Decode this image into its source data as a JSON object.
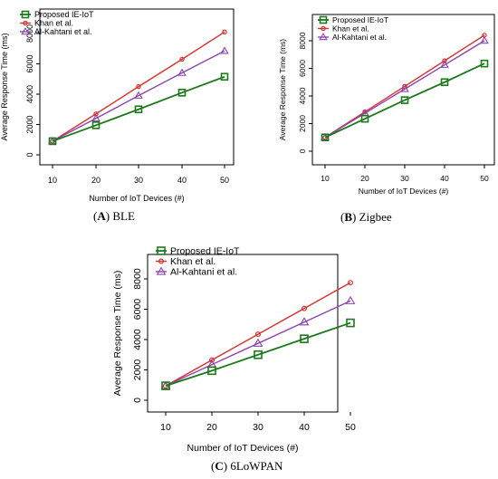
{
  "chart_data": [
    {
      "type": "line",
      "caption": {
        "letter": "A",
        "label": "BLE"
      },
      "xlabel": "Number of IoT Devices (#)",
      "ylabel": "Average Response Time (ms)",
      "x": [
        10,
        20,
        30,
        40,
        50
      ],
      "xticks": [
        "10",
        "20",
        "30",
        "40",
        "50"
      ],
      "yticks": [
        0,
        2000,
        4000,
        6000,
        8000
      ],
      "ylim": [
        -100,
        8800
      ],
      "grid": false,
      "legend_position": "top-left",
      "series": [
        {
          "name": "Proposed IE-IoT",
          "color": "#1a7a1a",
          "marker": "square",
          "values": [
            900,
            1950,
            3000,
            4100,
            5150
          ]
        },
        {
          "name": "Khan et al.",
          "color": "#d9302b",
          "marker": "circle",
          "values": [
            900,
            2700,
            4500,
            6300,
            8100
          ]
        },
        {
          "name": "Al-Kahtani et al.",
          "color": "#8e44ad",
          "marker": "triangle",
          "values": [
            900,
            2400,
            3900,
            5400,
            6850
          ]
        }
      ]
    },
    {
      "type": "line",
      "caption": {
        "letter": "B",
        "label": "Zigbee"
      },
      "xlabel": "Number of IoT Devices (#)",
      "ylabel": "Average Response Time (ms)",
      "x": [
        10,
        20,
        30,
        40,
        50
      ],
      "xticks": [
        "10",
        "20",
        "30",
        "40",
        "50"
      ],
      "yticks": [
        0,
        2000,
        4000,
        6000,
        8000
      ],
      "ylim": [
        -100,
        9000
      ],
      "grid": false,
      "legend_position": "top-left",
      "series": [
        {
          "name": "Proposed IE-IoT",
          "color": "#1a7a1a",
          "marker": "square",
          "values": [
            1000,
            2350,
            3700,
            5000,
            6350
          ]
        },
        {
          "name": "Khan et al.",
          "color": "#d9302b",
          "marker": "circle",
          "values": [
            1000,
            2850,
            4700,
            6550,
            8400
          ]
        },
        {
          "name": "Al-Kahtani et al.",
          "color": "#8e44ad",
          "marker": "triangle",
          "values": [
            1000,
            2750,
            4500,
            6250,
            8000
          ]
        }
      ]
    },
    {
      "type": "line",
      "caption": {
        "letter": "C",
        "label": "6LoWPAN"
      },
      "xlabel": "Number of IoT Devices (#)",
      "ylabel": "Average Response Time (ms)",
      "x": [
        10,
        20,
        30,
        40,
        50
      ],
      "xticks": [
        "10",
        "20",
        "30",
        "40",
        "50"
      ],
      "yticks": [
        0,
        2000,
        4000,
        6000,
        8000
      ],
      "ylim": [
        -100,
        8600
      ],
      "grid": false,
      "legend_position": "top-left",
      "series": [
        {
          "name": "Proposed IE-IoT",
          "color": "#1a7a1a",
          "marker": "square",
          "values": [
            950,
            1950,
            3000,
            4050,
            5100
          ]
        },
        {
          "name": "Khan et al.",
          "color": "#d9302b",
          "marker": "circle",
          "values": [
            950,
            2650,
            4350,
            6050,
            7750
          ]
        },
        {
          "name": "Al-Kahtani et al.",
          "color": "#8e44ad",
          "marker": "triangle",
          "values": [
            950,
            2350,
            3750,
            5150,
            6550
          ]
        }
      ]
    }
  ]
}
